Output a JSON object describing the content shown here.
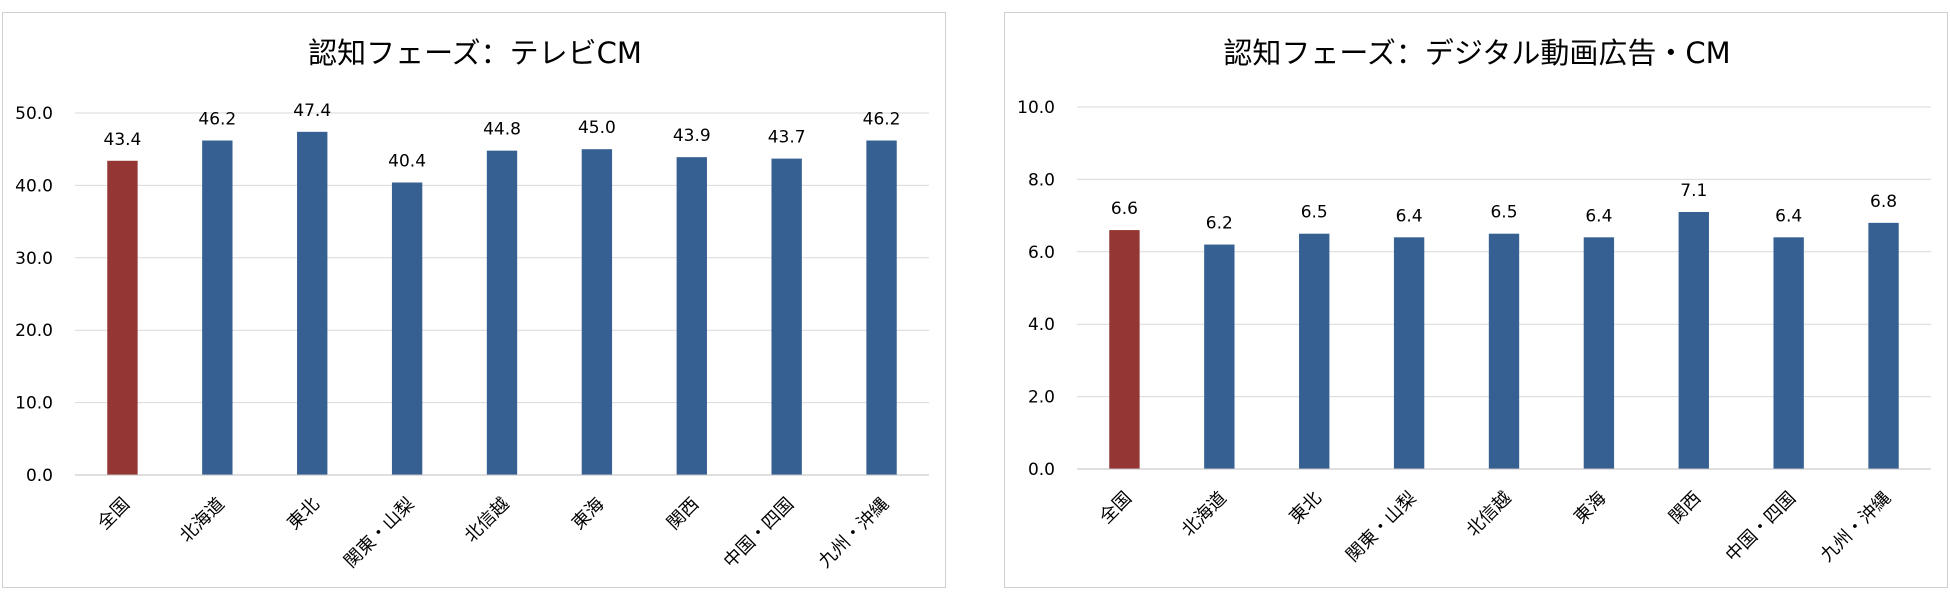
{
  "chart_data": [
    {
      "type": "bar",
      "title": "認知フェーズ：テレビCM",
      "categories": [
        "全国",
        "北海道",
        "東北",
        "関東・山梨",
        "北信越",
        "東海",
        "関西",
        "中国・四国",
        "九州・沖縄"
      ],
      "values": [
        43.4,
        46.2,
        47.4,
        40.4,
        44.8,
        45.0,
        43.9,
        43.7,
        46.2
      ],
      "value_labels": [
        "43.4",
        "46.2",
        "47.4",
        "40.4",
        "44.8",
        "45.0",
        "43.9",
        "43.7",
        "46.2"
      ],
      "ylim": [
        0,
        50
      ],
      "yticks": [
        "0.0",
        "10.0",
        "20.0",
        "30.0",
        "40.0",
        "50.0"
      ],
      "xlabel": "",
      "ylabel": "",
      "grid": true,
      "legend": "none",
      "colors": {
        "highlight": "#943634",
        "bar": "#376092",
        "grid": "#d9d9d9",
        "text": "#000000"
      }
    },
    {
      "type": "bar",
      "title": "認知フェーズ：デジタル動画広告・CM",
      "categories": [
        "全国",
        "北海道",
        "東北",
        "関東・山梨",
        "北信越",
        "東海",
        "関西",
        "中国・四国",
        "九州・沖縄"
      ],
      "values": [
        6.6,
        6.2,
        6.5,
        6.4,
        6.5,
        6.4,
        7.1,
        6.4,
        6.8
      ],
      "value_labels": [
        "6.6",
        "6.2",
        "6.5",
        "6.4",
        "6.5",
        "6.4",
        "7.1",
        "6.4",
        "6.8"
      ],
      "ylim": [
        0,
        10
      ],
      "yticks": [
        "0.0",
        "2.0",
        "4.0",
        "6.0",
        "8.0",
        "10.0"
      ],
      "xlabel": "",
      "ylabel": "",
      "grid": true,
      "legend": "none",
      "colors": {
        "highlight": "#943634",
        "bar": "#376092",
        "grid": "#d9d9d9",
        "text": "#000000"
      }
    }
  ]
}
